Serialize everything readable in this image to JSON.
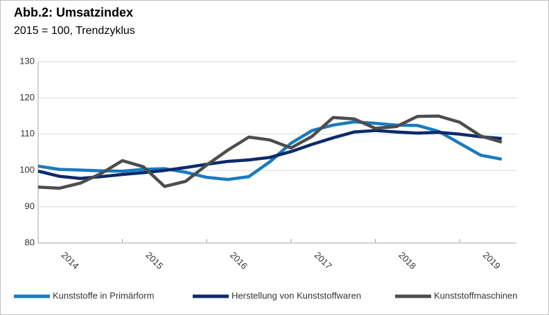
{
  "chart_data": {
    "type": "line",
    "title": "Abb.2: Umsatzindex",
    "subtitle": "2015 = 100, Trendzyklus",
    "categories": [
      "2014",
      null,
      null,
      null,
      "2015",
      null,
      null,
      null,
      "2016",
      null,
      null,
      null,
      "2017",
      null,
      null,
      null,
      "2018",
      null,
      null,
      null,
      "2019",
      null,
      null
    ],
    "series": [
      {
        "name": "Kunststoffe in Primärform",
        "color": "#1a7abf",
        "values": [
          101.2,
          100.3,
          100.1,
          99.9,
          99.8,
          100.3,
          100.5,
          99.5,
          98.1,
          97.5,
          98.3,
          102.4,
          107.5,
          111.0,
          112.5,
          113.4,
          113.0,
          112.5,
          112.4,
          110.8,
          107.5,
          104.2,
          103.1
        ]
      },
      {
        "name": "Herstellung von Kunststoffwaren",
        "color": "#0d2a6b",
        "values": [
          99.8,
          98.4,
          97.8,
          98.3,
          98.9,
          99.4,
          100.0,
          100.8,
          101.7,
          102.5,
          102.9,
          103.6,
          105.2,
          107.2,
          109.0,
          110.6,
          111.0,
          110.6,
          110.3,
          110.5,
          110.0,
          109.3,
          108.8
        ]
      },
      {
        "name": "Kunststoffmaschinen",
        "color": "#4d4d4d",
        "values": [
          95.4,
          95.1,
          96.5,
          99.2,
          102.7,
          101.0,
          95.6,
          97.0,
          101.5,
          105.6,
          109.2,
          108.4,
          106.2,
          109.4,
          114.6,
          114.2,
          111.6,
          112.1,
          114.9,
          115.0,
          113.3,
          109.5,
          107.8
        ]
      }
    ],
    "ylim": [
      80,
      130
    ],
    "yticks": [
      80,
      90,
      100,
      110,
      120,
      130
    ],
    "grid": true,
    "legend": "bottom"
  }
}
